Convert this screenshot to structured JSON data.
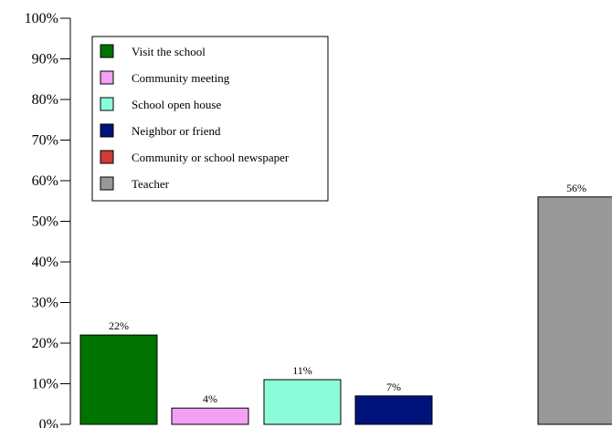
{
  "chart_data": {
    "type": "bar",
    "title": "",
    "xlabel": "",
    "ylabel": "",
    "ylim": [
      0,
      100
    ],
    "yticks": [
      "0%",
      "10%",
      "20%",
      "30%",
      "40%",
      "50%",
      "60%",
      "70%",
      "80%",
      "90%",
      "100%"
    ],
    "grid": false,
    "legend_position": "top-left",
    "series": [
      {
        "name": "Visit the school",
        "value": 22,
        "label": "22%",
        "color": "#007300"
      },
      {
        "name": "Community meeting",
        "value": 4,
        "label": "4%",
        "color": "#f4a0f4"
      },
      {
        "name": "School open house",
        "value": 11,
        "label": "11%",
        "color": "#8cfbda"
      },
      {
        "name": "Neighbor or friend",
        "value": 7,
        "label": "7%",
        "color": "#00137d"
      },
      {
        "name": "Community or school newspaper",
        "value": 0,
        "label": "",
        "color": "#cf3b35"
      },
      {
        "name": "Teacher",
        "value": 56,
        "label": "56%",
        "color": "#999999"
      }
    ]
  }
}
